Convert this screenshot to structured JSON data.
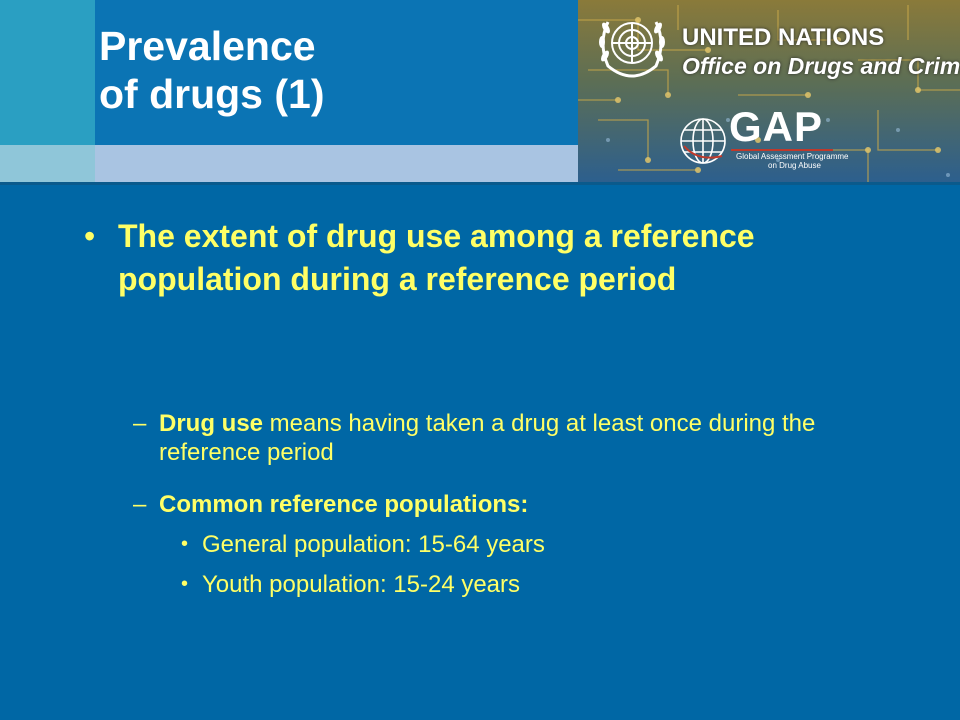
{
  "slide": {
    "title_line1": "Prevalence",
    "title_line2": "of drugs (1)"
  },
  "logos": {
    "un_line1": "UNITED NATIONS",
    "un_line2": "Office on Drugs and Crime",
    "gap_word": "GAP",
    "gap_sub_line1": "Global Assessment Programme",
    "gap_sub_line2": "on Drug Abuse"
  },
  "body": {
    "main_bullet": "The extent of drug use among a reference population during a reference period",
    "sub1_bold": "Drug use",
    "sub1_rest": " means having taken a drug at least once during the reference period",
    "sub2_bold": "Common reference populations:",
    "items": [
      "General population: 15-64 years",
      "Youth population: 15-24 years"
    ]
  },
  "colors": {
    "background": "#0067a5",
    "bullet_text": "#ffff66",
    "title_text": "#ffffff"
  }
}
